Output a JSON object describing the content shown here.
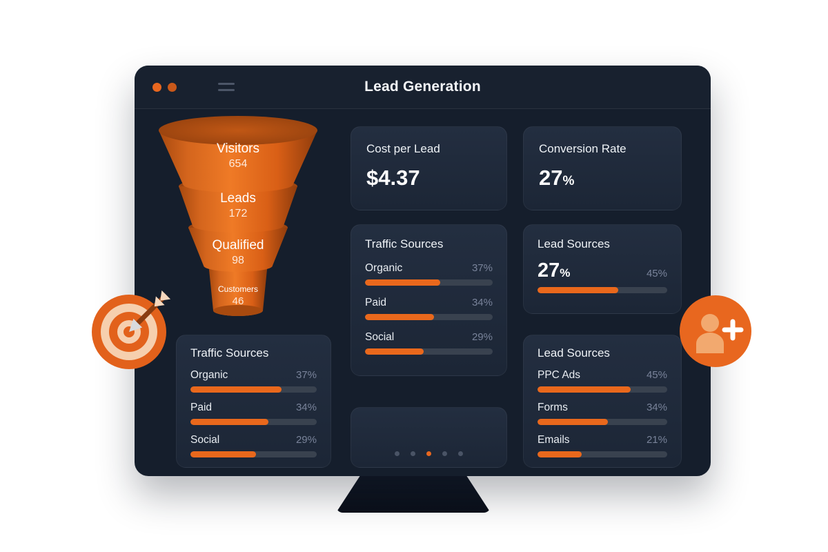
{
  "app": {
    "title": "Lead Generation"
  },
  "colors": {
    "accent": "#E8671F",
    "monitor_bg": "#151E2C",
    "track": "#39424F",
    "muted_text": "#79839A"
  },
  "funnel": {
    "stages": [
      {
        "label": "Visitors",
        "value": "654"
      },
      {
        "label": "Leads",
        "value": "172"
      },
      {
        "label": "Qualified",
        "value": "98"
      },
      {
        "label": "Customers",
        "value": "46"
      }
    ]
  },
  "cost_card": {
    "title": "Cost per Lead",
    "value": "$4.37"
  },
  "conversion_card": {
    "title": "Conversion Rate",
    "value": "27",
    "unit": "%"
  },
  "traffic_mid": {
    "title": "Traffic Sources",
    "rows": [
      {
        "label": "Organic",
        "value": "37%",
        "fill": "59%"
      },
      {
        "label": "Paid",
        "value": "34%",
        "fill": "54%"
      },
      {
        "label": "Social",
        "value": "29%",
        "fill": "46%"
      }
    ]
  },
  "traffic_left": {
    "title": "Traffic Sources",
    "rows": [
      {
        "label": "Organic",
        "value": "37%",
        "fill": "72%"
      },
      {
        "label": "Paid",
        "value": "34%",
        "fill": "62%"
      },
      {
        "label": "Social",
        "value": "29%",
        "fill": "52%"
      }
    ]
  },
  "lead_summary_card": {
    "title": "Lead Sources",
    "value": "27",
    "unit": "%",
    "side_value": "45%",
    "fill": "62%"
  },
  "lead_sources_card": {
    "title": "Lead Sources",
    "rows": [
      {
        "label": "PPC Ads",
        "value": "45%",
        "fill": "72%"
      },
      {
        "label": "Forms",
        "value": "34%",
        "fill": "54%"
      },
      {
        "label": "Emails",
        "value": "21%",
        "fill": "34%"
      }
    ]
  },
  "pagination": {
    "count": 5,
    "active": 2
  },
  "icons": {
    "titlebar_menu": "menu-icon",
    "window_controls": "window-control-dots",
    "left_decoration": "target-dart-icon",
    "right_decoration": "add-user-icon"
  }
}
